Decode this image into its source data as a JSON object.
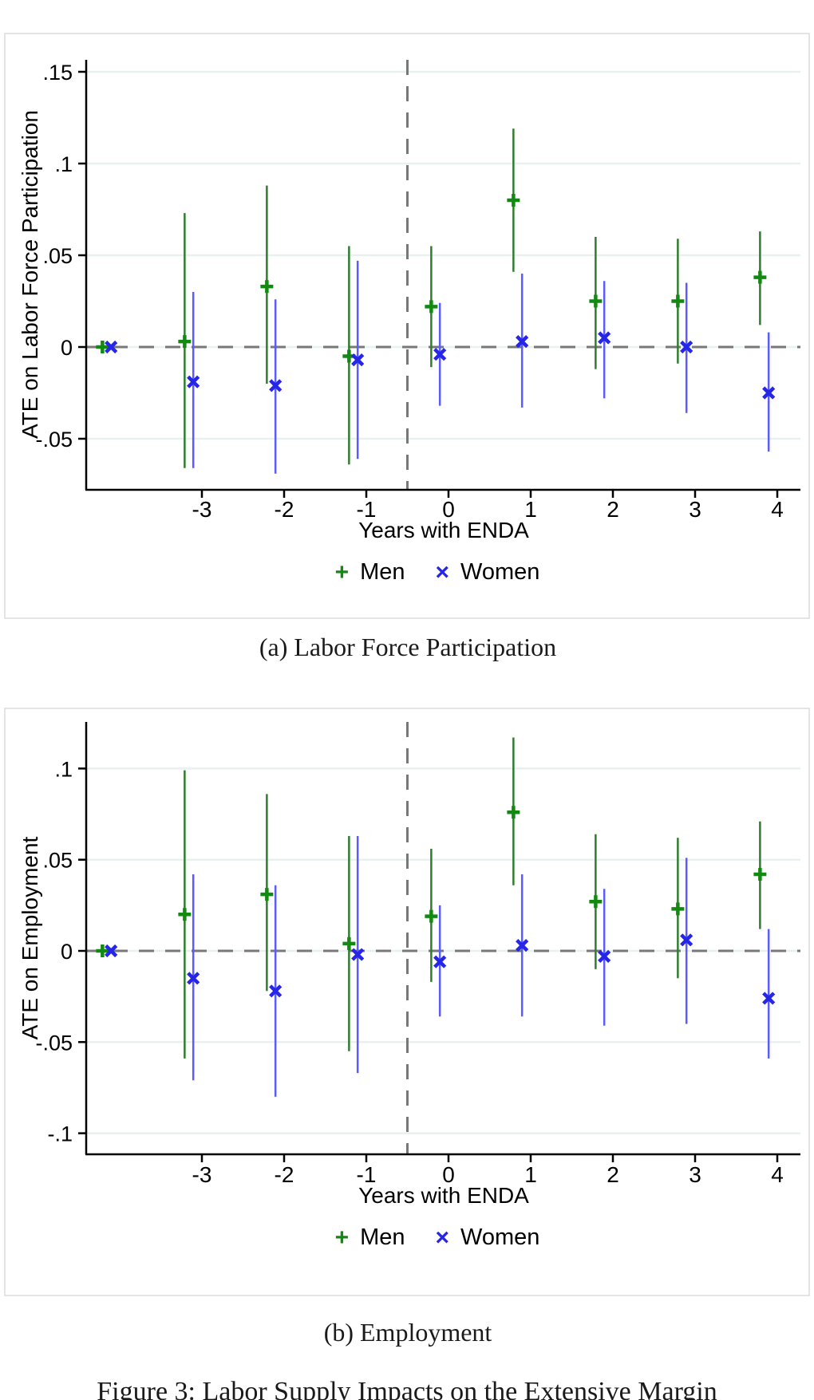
{
  "figure": {
    "caption": "Figure 3: Labor Supply Impacts on the Extensive Margin"
  },
  "chart_data": [
    {
      "type": "scatter",
      "caption": "(a) Labor Force Participation",
      "ylabel": "ATE on Labor Force Participation",
      "xlabel": "Years with ENDA",
      "legend_position": "bottom",
      "grid": true,
      "x_ticks": [
        -3,
        -2,
        -1,
        0,
        1,
        2,
        3,
        4
      ],
      "y_ticks": [
        {
          "v": 0.15,
          "label": ".15"
        },
        {
          "v": 0.1,
          "label": ".1"
        },
        {
          "v": 0.05,
          "label": ".05"
        },
        {
          "v": 0.0,
          "label": "0"
        },
        {
          "v": -0.05,
          "label": "-.05"
        }
      ],
      "xlim": [
        -4.4,
        4.3
      ],
      "ylim": [
        -0.078,
        0.157
      ],
      "ref_line_y": 0,
      "ref_line_x": -0.5,
      "legend": [
        "Men",
        "Women"
      ],
      "series": [
        {
          "name": "Men",
          "marker": "plus",
          "color": "#128a12",
          "ci_color": "#2f7d2f",
          "points": [
            {
              "x": -4,
              "y": 0
            },
            {
              "x": -3,
              "y": 0.003,
              "lo": -0.066,
              "hi": 0.073
            },
            {
              "x": -2,
              "y": 0.033,
              "lo": -0.02,
              "hi": 0.088
            },
            {
              "x": -1,
              "y": -0.005,
              "lo": -0.064,
              "hi": 0.055
            },
            {
              "x": 0,
              "y": 0.022,
              "lo": -0.011,
              "hi": 0.055
            },
            {
              "x": 1,
              "y": 0.08,
              "lo": 0.041,
              "hi": 0.119
            },
            {
              "x": 2,
              "y": 0.025,
              "lo": -0.012,
              "hi": 0.06
            },
            {
              "x": 3,
              "y": 0.025,
              "lo": -0.009,
              "hi": 0.059
            },
            {
              "x": 4,
              "y": 0.038,
              "lo": 0.012,
              "hi": 0.063
            }
          ]
        },
        {
          "name": "Women",
          "marker": "x",
          "color": "#2626e8",
          "ci_color": "#5b5bff",
          "points": [
            {
              "x": -4,
              "y": 0
            },
            {
              "x": -3,
              "y": -0.019,
              "lo": -0.066,
              "hi": 0.03
            },
            {
              "x": -2,
              "y": -0.021,
              "lo": -0.069,
              "hi": 0.026
            },
            {
              "x": -1,
              "y": -0.007,
              "lo": -0.061,
              "hi": 0.047
            },
            {
              "x": 0,
              "y": -0.004,
              "lo": -0.032,
              "hi": 0.024
            },
            {
              "x": 1,
              "y": 0.003,
              "lo": -0.033,
              "hi": 0.04
            },
            {
              "x": 2,
              "y": 0.005,
              "lo": -0.028,
              "hi": 0.036
            },
            {
              "x": 3,
              "y": 0.0,
              "lo": -0.036,
              "hi": 0.035
            },
            {
              "x": 4,
              "y": -0.025,
              "lo": -0.057,
              "hi": 0.008
            }
          ]
        }
      ]
    },
    {
      "type": "scatter",
      "caption": "(b) Employment",
      "ylabel": "ATE on Employment",
      "xlabel": "Years with ENDA",
      "legend_position": "bottom",
      "grid": true,
      "x_ticks": [
        -3,
        -2,
        -1,
        0,
        1,
        2,
        3,
        4
      ],
      "y_ticks": [
        {
          "v": 0.1,
          "label": ".1"
        },
        {
          "v": 0.05,
          "label": ".05"
        },
        {
          "v": 0.0,
          "label": "0"
        },
        {
          "v": -0.05,
          "label": "-.05"
        },
        {
          "v": -0.1,
          "label": "-.1"
        }
      ],
      "xlim": [
        -4.4,
        4.3
      ],
      "ylim": [
        -0.112,
        0.126
      ],
      "ref_line_y": 0,
      "ref_line_x": -0.5,
      "legend": [
        "Men",
        "Women"
      ],
      "series": [
        {
          "name": "Men",
          "marker": "plus",
          "color": "#128a12",
          "ci_color": "#2f7d2f",
          "points": [
            {
              "x": -4,
              "y": 0
            },
            {
              "x": -3,
              "y": 0.02,
              "lo": -0.059,
              "hi": 0.099
            },
            {
              "x": -2,
              "y": 0.031,
              "lo": -0.022,
              "hi": 0.086
            },
            {
              "x": -1,
              "y": 0.004,
              "lo": -0.055,
              "hi": 0.063
            },
            {
              "x": 0,
              "y": 0.019,
              "lo": -0.017,
              "hi": 0.056
            },
            {
              "x": 1,
              "y": 0.076,
              "lo": 0.036,
              "hi": 0.117
            },
            {
              "x": 2,
              "y": 0.027,
              "lo": -0.01,
              "hi": 0.064
            },
            {
              "x": 3,
              "y": 0.023,
              "lo": -0.015,
              "hi": 0.062
            },
            {
              "x": 4,
              "y": 0.042,
              "lo": 0.012,
              "hi": 0.071
            }
          ]
        },
        {
          "name": "Women",
          "marker": "x",
          "color": "#2626e8",
          "ci_color": "#5b5bff",
          "points": [
            {
              "x": -4,
              "y": 0
            },
            {
              "x": -3,
              "y": -0.015,
              "lo": -0.071,
              "hi": 0.042
            },
            {
              "x": -2,
              "y": -0.022,
              "lo": -0.08,
              "hi": 0.036
            },
            {
              "x": -1,
              "y": -0.002,
              "lo": -0.067,
              "hi": 0.063
            },
            {
              "x": 0,
              "y": -0.006,
              "lo": -0.036,
              "hi": 0.025
            },
            {
              "x": 1,
              "y": 0.003,
              "lo": -0.036,
              "hi": 0.042
            },
            {
              "x": 2,
              "y": -0.003,
              "lo": -0.041,
              "hi": 0.034
            },
            {
              "x": 3,
              "y": 0.006,
              "lo": -0.04,
              "hi": 0.051
            },
            {
              "x": 4,
              "y": -0.026,
              "lo": -0.059,
              "hi": 0.012
            }
          ]
        }
      ]
    }
  ],
  "style": {
    "grid_color": "#e7f1ef",
    "axis_color": "#000000",
    "dash_color": "#787878",
    "frame_color": "#dcdcdc"
  }
}
